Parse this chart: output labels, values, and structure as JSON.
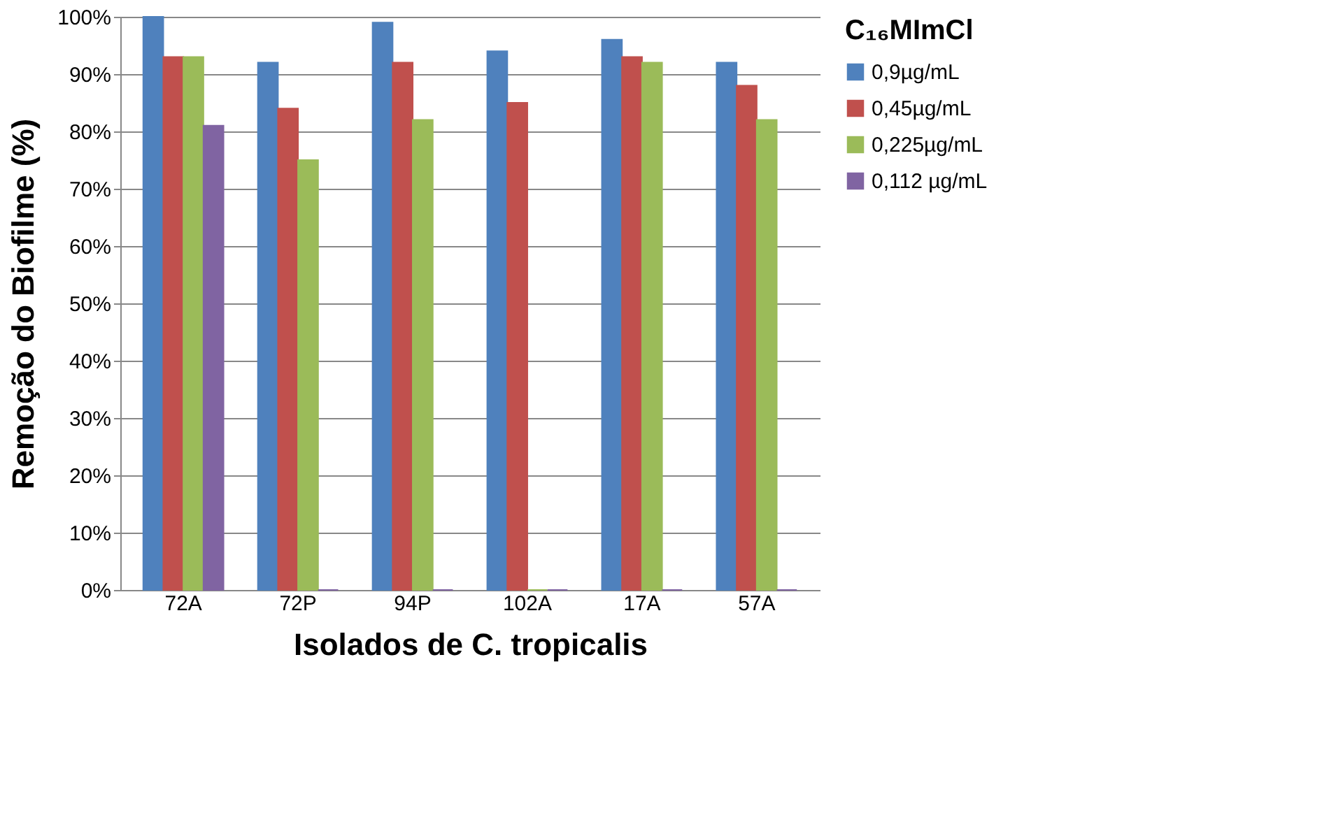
{
  "chart_data": {
    "type": "bar",
    "xlabel": "Isolados de C. tropicalis",
    "ylabel": "Remoção do Biofilme (%)",
    "legend_title": "C₁₆MImCl",
    "categories": [
      "72A",
      "72P",
      "94P",
      "102A",
      "17A",
      "57A"
    ],
    "series": [
      {
        "name": "0,9µg/mL",
        "color": "#4f81bd",
        "values": [
          100,
          92,
          99,
          94,
          96,
          92
        ]
      },
      {
        "name": "0,45µg/mL",
        "color": "#c0504d",
        "values": [
          93,
          84,
          92,
          85,
          93,
          88
        ]
      },
      {
        "name": "0,225µg/mL",
        "color": "#9bbb59",
        "values": [
          93,
          75,
          82,
          0,
          92,
          82
        ]
      },
      {
        "name": "0,112 µg/mL",
        "color": "#8064a2",
        "values": [
          81,
          0,
          0,
          0,
          0,
          0
        ]
      }
    ],
    "ylim": [
      0,
      100
    ],
    "yticks": [
      {
        "value": 0,
        "label": "0%"
      },
      {
        "value": 10,
        "label": "10%"
      },
      {
        "value": 20,
        "label": "20%"
      },
      {
        "value": 30,
        "label": "30%"
      },
      {
        "value": 40,
        "label": "40%"
      },
      {
        "value": 50,
        "label": "50%"
      },
      {
        "value": 60,
        "label": "60%"
      },
      {
        "value": 70,
        "label": "70%"
      },
      {
        "value": 80,
        "label": "80%"
      },
      {
        "value": 90,
        "label": "90%"
      },
      {
        "value": 100,
        "label": "100%"
      }
    ],
    "grid": "y",
    "legend": "right"
  }
}
